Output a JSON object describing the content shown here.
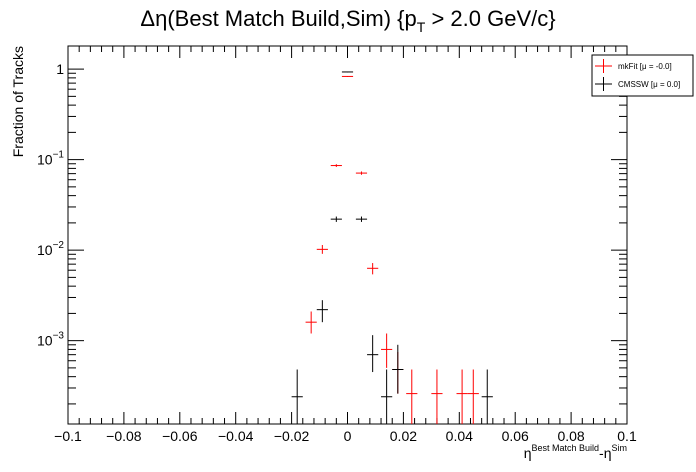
{
  "chart_data": {
    "type": "scatter",
    "title": "Δη(Best Match Build,Sim) {p",
    "title_sub": "T",
    "title_tail": " > 2.0 GeV/c}",
    "xlabel": "η",
    "xlabel_sup1": "Best Match Build",
    "xlabel_mid": "-η",
    "xlabel_sup2": "Sim",
    "ylabel": "Fraction of Tracks",
    "xlim": [
      -0.1,
      0.1
    ],
    "ylim": [
      0.00012,
      1.8
    ],
    "y_scale": "log",
    "x_ticks": [
      "−0.1",
      "−0.08",
      "−0.06",
      "−0.04",
      "−0.02",
      "0",
      "0.02",
      "0.04",
      "0.06",
      "0.08",
      "0.1"
    ],
    "y_ticks": [
      {
        "base": "1",
        "exp": ""
      },
      {
        "base": "10",
        "exp": "−1"
      },
      {
        "base": "10",
        "exp": "−2"
      },
      {
        "base": "10",
        "exp": "−3"
      }
    ],
    "legend_position": "top-right",
    "bin_halfwidth": 0.002,
    "series": [
      {
        "name": "mkFit  [μ = -0.0]",
        "color": "#ff0000",
        "points": [
          {
            "x": -0.013,
            "y": 0.0016,
            "ylo": 0.0012,
            "yhi": 0.0021
          },
          {
            "x": -0.009,
            "y": 0.0102,
            "ylo": 0.0091,
            "yhi": 0.0114
          },
          {
            "x": -0.004,
            "y": 0.086,
            "ylo": 0.083,
            "yhi": 0.089
          },
          {
            "x": 0.0,
            "y": 0.83,
            "ylo": 0.82,
            "yhi": 0.84
          },
          {
            "x": 0.005,
            "y": 0.071,
            "ylo": 0.068,
            "yhi": 0.074
          },
          {
            "x": 0.009,
            "y": 0.0063,
            "ylo": 0.0054,
            "yhi": 0.0072
          },
          {
            "x": 0.014,
            "y": 0.0008,
            "ylo": 0.0005,
            "yhi": 0.0012
          },
          {
            "x": 0.018,
            "y": 0.00048,
            "ylo": 0.00026,
            "yhi": 0.00075
          },
          {
            "x": 0.023,
            "y": 0.00026,
            "ylo": 0.00012,
            "yhi": 0.00048
          },
          {
            "x": 0.032,
            "y": 0.00026,
            "ylo": 0.00012,
            "yhi": 0.00048
          },
          {
            "x": 0.041,
            "y": 0.00026,
            "ylo": 0.00012,
            "yhi": 0.00048
          },
          {
            "x": 0.045,
            "y": 0.00026,
            "ylo": 0.00012,
            "yhi": 0.00048
          }
        ]
      },
      {
        "name": "CMSSW  [μ =  0.0]",
        "color": "#000000",
        "points": [
          {
            "x": -0.018,
            "y": 0.00024,
            "ylo": 0.00012,
            "yhi": 0.00048
          },
          {
            "x": -0.009,
            "y": 0.0022,
            "ylo": 0.0016,
            "yhi": 0.0028
          },
          {
            "x": -0.004,
            "y": 0.022,
            "ylo": 0.0205,
            "yhi": 0.0235
          },
          {
            "x": 0.0,
            "y": 0.93,
            "ylo": 0.92,
            "yhi": 0.94
          },
          {
            "x": 0.005,
            "y": 0.022,
            "ylo": 0.0205,
            "yhi": 0.0235
          },
          {
            "x": 0.009,
            "y": 0.0007,
            "ylo": 0.00045,
            "yhi": 0.00115
          },
          {
            "x": 0.014,
            "y": 0.00024,
            "ylo": 0.00012,
            "yhi": 0.00048
          },
          {
            "x": 0.018,
            "y": 0.00048,
            "ylo": 0.00026,
            "yhi": 0.0009
          },
          {
            "x": 0.05,
            "y": 0.00024,
            "ylo": 0.00012,
            "yhi": 0.00048
          }
        ]
      }
    ]
  }
}
